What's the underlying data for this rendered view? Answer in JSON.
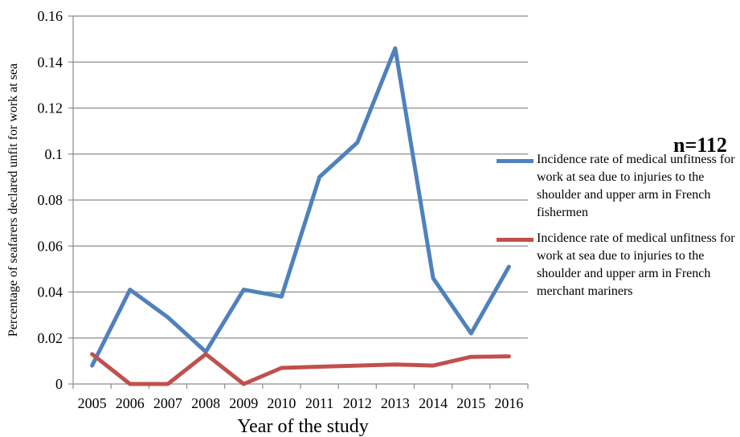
{
  "chart_data": {
    "type": "line",
    "annotation": "n=112",
    "xlabel": "Year of the study",
    "ylabel": "Percentage of seafarers declared unfit for work at sea",
    "categories": [
      "2005",
      "2006",
      "2007",
      "2008",
      "2009",
      "2010",
      "2011",
      "2012",
      "2013",
      "2014",
      "2015",
      "2016"
    ],
    "ylim": [
      0,
      0.16
    ],
    "yticks": [
      "0",
      "0.02",
      "0.04",
      "0.06",
      "0.08",
      "0.1",
      "0.12",
      "0.14",
      "0.16"
    ],
    "grid": true,
    "legend_position": "right",
    "series": [
      {
        "name": "Incidence rate of medical unfitness for work at sea due to injuries to the shoulder and upper arm in French fishermen",
        "color": "#4F81BD",
        "values": [
          0.008,
          0.041,
          0.029,
          0.014,
          0.041,
          0.038,
          0.09,
          0.105,
          0.146,
          0.046,
          0.022,
          0.051
        ]
      },
      {
        "name": "Incidence rate of medical unfitness for work at sea due to injuries to the shoulder and upper arm in French merchant mariners",
        "color": "#C0504D",
        "values": [
          0.013,
          0.0,
          0.0,
          0.013,
          0.0,
          0.007,
          0.0075,
          0.008,
          0.0085,
          0.008,
          0.0118,
          0.012
        ]
      }
    ]
  }
}
